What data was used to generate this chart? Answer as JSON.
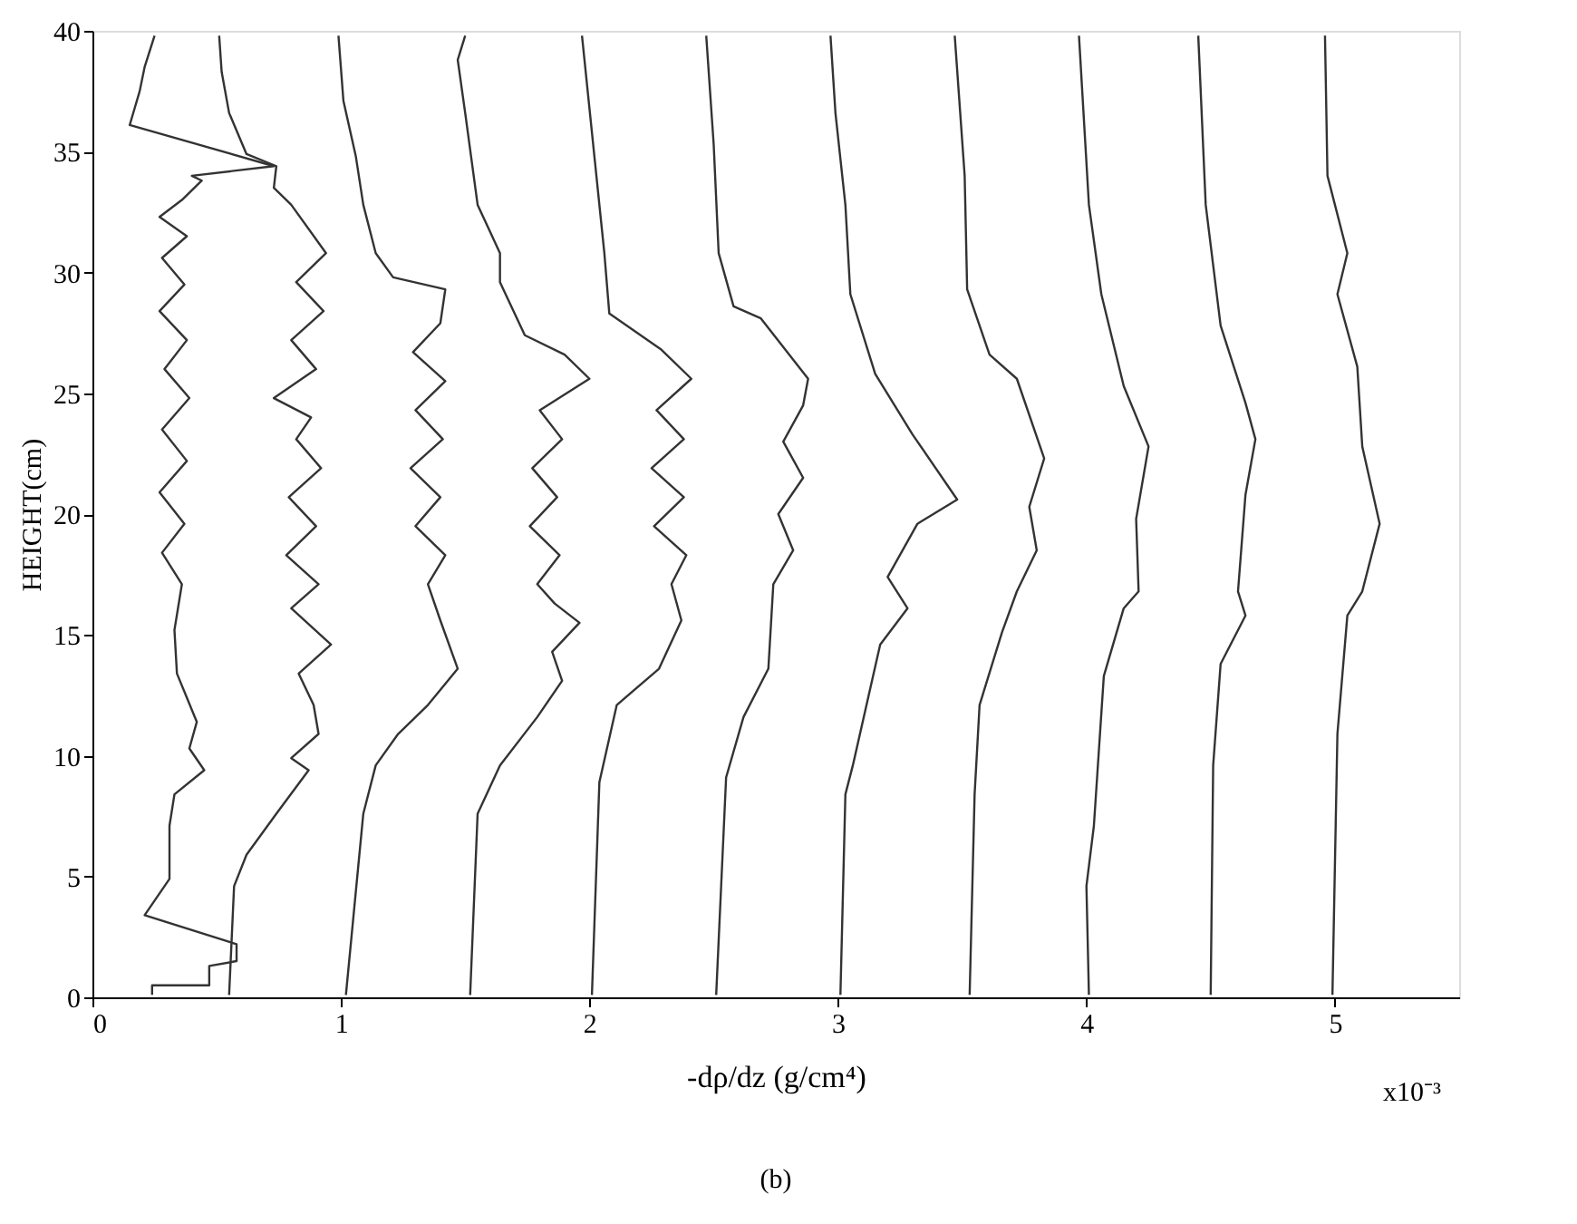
{
  "chart_data": {
    "type": "line",
    "xlabel": "-dρ/dz (g/cm⁴)",
    "ylabel": "HEIGHT(cm)",
    "annotations": [
      "x10⁻³",
      "(b)"
    ],
    "xlim": [
      0,
      5.5
    ],
    "xticks": [
      0,
      1,
      2,
      3,
      4,
      5
    ],
    "ylim": [
      0,
      40
    ],
    "yticks": [
      0,
      5,
      10,
      15,
      20,
      25,
      30,
      35,
      40
    ],
    "grid": false,
    "legend": false,
    "marker": "none",
    "line_style": "solid",
    "series": [
      {
        "color": "#333333",
        "x": [
          0.24,
          0.24,
          0.47,
          0.47,
          0.58,
          0.58,
          0.21,
          0.31,
          0.31,
          0.33,
          0.45,
          0.39,
          0.42,
          0.34,
          0.33,
          0.36,
          0.28,
          0.37,
          0.27,
          0.38,
          0.28,
          0.39,
          0.29,
          0.38,
          0.27,
          0.37,
          0.28,
          0.38,
          0.27,
          0.36,
          0.44,
          0.4,
          0.73,
          0.15,
          0.17,
          0.19,
          0.21,
          0.25
        ],
        "values": [
          0.1,
          0.5,
          0.5,
          1.3,
          1.5,
          2.2,
          3.4,
          4.9,
          7.1,
          8.4,
          9.4,
          10.3,
          11.4,
          13.4,
          15.2,
          17.1,
          18.4,
          19.6,
          20.9,
          22.2,
          23.5,
          24.8,
          26.0,
          27.2,
          28.4,
          29.5,
          30.6,
          31.5,
          32.3,
          33.0,
          33.8,
          34.0,
          34.4,
          36.1,
          36.8,
          37.5,
          38.5,
          39.8
        ]
      },
      {
        "color": "#333333",
        "x": [
          0.55,
          0.57,
          0.62,
          0.74,
          0.87,
          0.8,
          0.91,
          0.89,
          0.83,
          0.96,
          0.8,
          0.91,
          0.78,
          0.9,
          0.79,
          0.92,
          0.82,
          0.88,
          0.73,
          0.9,
          0.8,
          0.93,
          0.82,
          0.94,
          0.8,
          0.73,
          0.74,
          0.62,
          0.55,
          0.52,
          0.51
        ],
        "values": [
          0.1,
          4.6,
          5.9,
          7.6,
          9.4,
          9.9,
          10.9,
          12.1,
          13.4,
          14.6,
          16.1,
          17.1,
          18.3,
          19.5,
          20.7,
          21.9,
          23.1,
          24.0,
          24.8,
          26.0,
          27.2,
          28.4,
          29.6,
          30.8,
          32.8,
          33.5,
          34.4,
          34.9,
          36.6,
          38.3,
          39.8
        ]
      },
      {
        "color": "#333333",
        "x": [
          1.02,
          1.09,
          1.14,
          1.23,
          1.35,
          1.47,
          1.4,
          1.35,
          1.42,
          1.3,
          1.4,
          1.28,
          1.41,
          1.3,
          1.42,
          1.29,
          1.4,
          1.42,
          1.21,
          1.14,
          1.09,
          1.06,
          1.01,
          0.99
        ],
        "values": [
          0.1,
          7.6,
          9.6,
          10.9,
          12.1,
          13.6,
          15.6,
          17.1,
          18.3,
          19.5,
          20.7,
          21.9,
          23.1,
          24.3,
          25.5,
          26.7,
          27.9,
          29.3,
          29.8,
          30.8,
          32.8,
          34.8,
          37.1,
          39.8
        ]
      },
      {
        "color": "#333333",
        "x": [
          1.52,
          1.55,
          1.64,
          1.79,
          1.89,
          1.85,
          1.96,
          1.86,
          1.79,
          1.88,
          1.76,
          1.87,
          1.77,
          1.89,
          1.8,
          2.0,
          1.9,
          1.74,
          1.64,
          1.64,
          1.55,
          1.5,
          1.47,
          1.5
        ],
        "values": [
          0.1,
          7.6,
          9.6,
          11.6,
          13.1,
          14.3,
          15.5,
          16.3,
          17.1,
          18.3,
          19.5,
          20.7,
          21.9,
          23.1,
          24.3,
          25.6,
          26.6,
          27.4,
          29.6,
          30.8,
          32.8,
          36.6,
          38.8,
          39.8
        ]
      },
      {
        "color": "#333333",
        "x": [
          2.01,
          2.04,
          2.11,
          2.28,
          2.37,
          2.33,
          2.39,
          2.26,
          2.38,
          2.25,
          2.38,
          2.27,
          2.41,
          2.29,
          2.08,
          2.06,
          2.02,
          1.97
        ],
        "values": [
          0.1,
          8.9,
          12.1,
          13.6,
          15.6,
          17.1,
          18.3,
          19.5,
          20.7,
          21.9,
          23.1,
          24.3,
          25.6,
          26.8,
          28.3,
          30.8,
          34.8,
          39.8
        ]
      },
      {
        "color": "#333333",
        "x": [
          2.51,
          2.55,
          2.62,
          2.72,
          2.74,
          2.82,
          2.76,
          2.86,
          2.78,
          2.86,
          2.88,
          2.69,
          2.58,
          2.52,
          2.5,
          2.47
        ],
        "values": [
          0.1,
          9.1,
          11.6,
          13.6,
          17.1,
          18.5,
          20.0,
          21.5,
          23.0,
          24.5,
          25.6,
          28.1,
          28.6,
          30.8,
          35.3,
          39.8
        ]
      },
      {
        "color": "#333333",
        "x": [
          3.01,
          3.03,
          3.06,
          3.17,
          3.28,
          3.2,
          3.32,
          3.48,
          3.3,
          3.15,
          3.05,
          3.03,
          2.99,
          2.97
        ],
        "values": [
          0.1,
          8.4,
          9.6,
          14.6,
          16.1,
          17.4,
          19.6,
          20.6,
          23.3,
          25.8,
          29.1,
          32.8,
          36.6,
          39.8
        ]
      },
      {
        "color": "#333333",
        "x": [
          3.53,
          3.55,
          3.57,
          3.66,
          3.72,
          3.8,
          3.77,
          3.83,
          3.72,
          3.61,
          3.52,
          3.51,
          3.47
        ],
        "values": [
          0.1,
          8.4,
          12.1,
          15.1,
          16.8,
          18.5,
          20.3,
          22.3,
          25.6,
          26.6,
          29.3,
          34.0,
          39.8
        ]
      },
      {
        "color": "#333333",
        "x": [
          4.01,
          4.0,
          4.03,
          4.07,
          4.15,
          4.21,
          4.2,
          4.25,
          4.15,
          4.06,
          4.01,
          3.97
        ],
        "values": [
          0.1,
          4.6,
          7.1,
          13.3,
          16.1,
          16.8,
          19.8,
          22.8,
          25.3,
          29.1,
          32.8,
          39.8
        ]
      },
      {
        "color": "#333333",
        "x": [
          4.5,
          4.51,
          4.54,
          4.64,
          4.61,
          4.64,
          4.68,
          4.64,
          4.54,
          4.48,
          4.45
        ],
        "values": [
          0.1,
          9.6,
          13.8,
          15.8,
          16.8,
          20.8,
          23.1,
          24.6,
          27.8,
          32.8,
          39.8
        ]
      },
      {
        "color": "#333333",
        "x": [
          4.99,
          5.01,
          5.05,
          5.11,
          5.18,
          5.11,
          5.09,
          5.01,
          5.05,
          4.97,
          4.96
        ],
        "values": [
          0.1,
          10.9,
          15.8,
          16.8,
          19.6,
          22.8,
          26.1,
          29.1,
          30.8,
          34.0,
          39.8
        ]
      }
    ]
  }
}
